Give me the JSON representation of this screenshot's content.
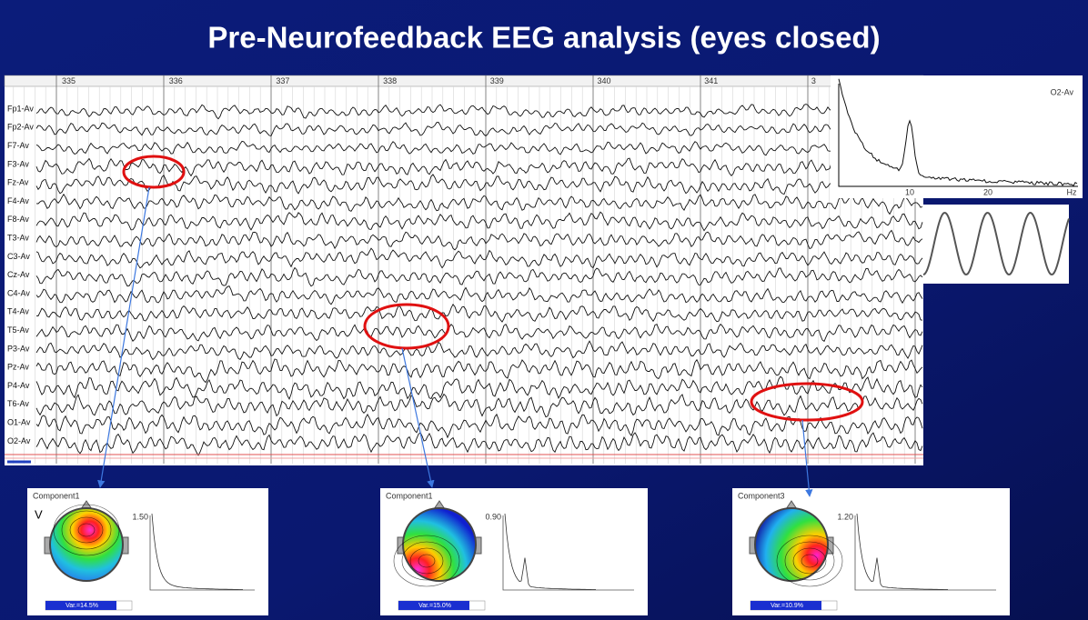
{
  "title": "Pre-Neurofeedback EEG analysis (eyes closed)",
  "eeg": {
    "time_marks": [
      "335",
      "336",
      "337",
      "338",
      "339",
      "340",
      "341",
      "3"
    ],
    "channels": [
      "Fp1-Av",
      "Fp2-Av",
      "F7-Av",
      "F3-Av",
      "Fz-Av",
      "F4-Av",
      "F8-Av",
      "T3-Av",
      "C3-Av",
      "Cz-Av",
      "C4-Av",
      "T4-Av",
      "T5-Av",
      "P3-Av",
      "Pz-Av",
      "P4-Av",
      "T6-Av",
      "O1-Av",
      "O2-Av"
    ]
  },
  "spectrum": {
    "channel": "O2-Av",
    "x_ticks": [
      "10",
      "20"
    ],
    "unit": "Hz"
  },
  "components": [
    {
      "name": "Component1",
      "marker": "V",
      "scale": "1.50",
      "variance": "Var.=14.5%"
    },
    {
      "name": "Component1",
      "scale": "0.90",
      "variance": "Var.=15.0%"
    },
    {
      "name": "Component3",
      "scale": "1.20",
      "variance": "Var.=10.9%"
    }
  ]
}
